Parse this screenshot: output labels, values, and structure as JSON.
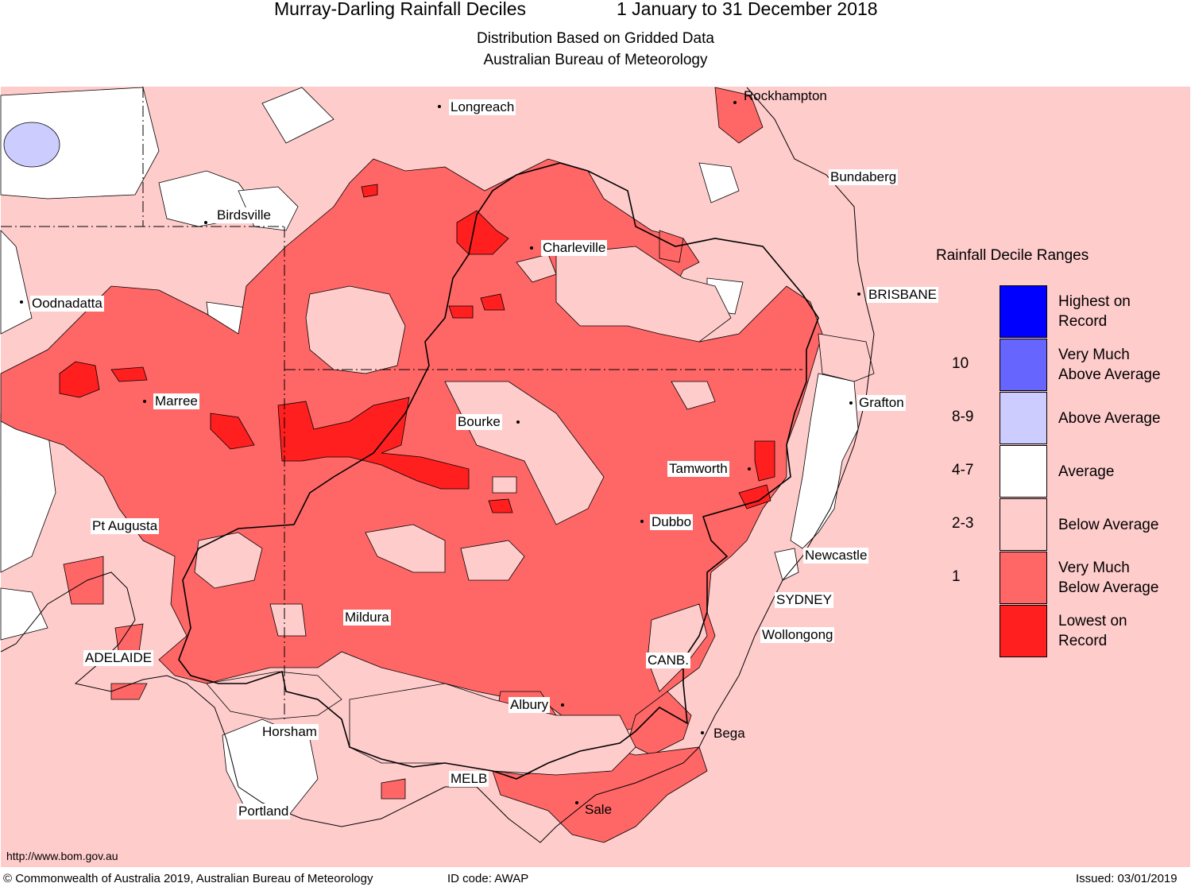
{
  "header": {
    "title_left": "Murray-Darling Rainfall Deciles",
    "title_right": "1 January to 31 December 2018",
    "subtitle_1": "Distribution Based on Gridded Data",
    "subtitle_2": "Australian Bureau of Meteorology"
  },
  "legend": {
    "title": "Rainfall Decile Ranges",
    "entries": [
      {
        "line1": "Highest on",
        "line2": "Record",
        "range": "",
        "color": "#0000ff"
      },
      {
        "line1": "Very Much",
        "line2": "Above Average",
        "range": "10",
        "color": "#6666ff"
      },
      {
        "line1": "Above Average",
        "line2": "",
        "range": "8-9",
        "color": "#ccccff"
      },
      {
        "line1": "Average",
        "line2": "",
        "range": "4-7",
        "color": "#ffffff"
      },
      {
        "line1": "Below Average",
        "line2": "",
        "range": "2-3",
        "color": "#ffcccc"
      },
      {
        "line1": "Very Much",
        "line2": "Below Average",
        "range": "1",
        "color": "#ff6666"
      },
      {
        "line1": "Lowest on",
        "line2": "Record",
        "range": "",
        "color": "#ff1f1f"
      }
    ]
  },
  "places": {
    "longreach": "Longreach",
    "rockhampton": "Rockhampton",
    "bundaberg": "Bundaberg",
    "birdsville": "Birdsville",
    "charleville": "Charleville",
    "oodnadatta": "Oodnadatta",
    "brisbane": "BRISBANE",
    "marree": "Marree",
    "bourke": "Bourke",
    "grafton": "Grafton",
    "tamworth": "Tamworth",
    "pt_augusta": "Pt Augusta",
    "dubbo": "Dubbo",
    "newcastle": "Newcastle",
    "sydney": "SYDNEY",
    "mildura": "Mildura",
    "wollongong": "Wollongong",
    "adelaide": "ADELAIDE",
    "canb": "CANB.",
    "albury": "Albury",
    "horsham": "Horsham",
    "bega": "Bega",
    "melb": "MELB",
    "portland": "Portland",
    "sale": "Sale"
  },
  "footer": {
    "url": "http://www.bom.gov.au",
    "copyright": "© Commonwealth of Australia 2019, Australian Bureau of Meteorology",
    "id_code": "ID code: AWAP",
    "issued": "Issued: 03/01/2019"
  },
  "colors": {
    "below_average": "#ffcccc",
    "very_much_below": "#ff6666",
    "lowest_on_record": "#ff1f1f",
    "above_average": "#ccccff",
    "average": "#ffffff"
  }
}
